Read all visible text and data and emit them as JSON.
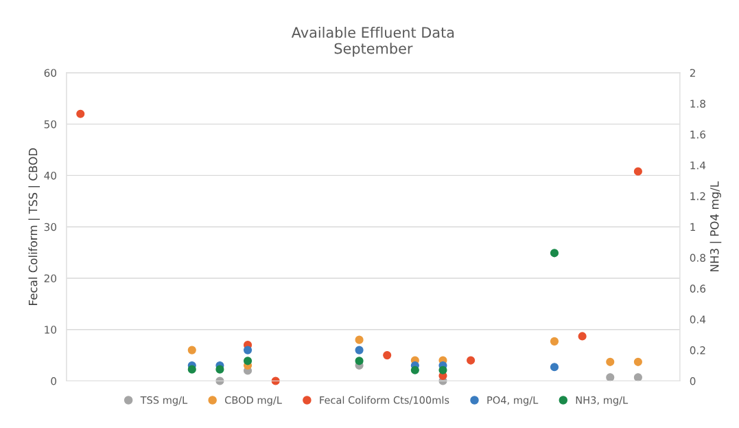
{
  "chart_data": {
    "type": "scatter",
    "title": "Available Effluent Data\nSeptember",
    "ylabel": "Fecal Coliform | TSS | CBOD",
    "y2label": "NH3 | PO4 mg/L",
    "categories": [
      null,
      null,
      null,
      null,
      null,
      null,
      null,
      null,
      null,
      null,
      null,
      null,
      null,
      null,
      null,
      null,
      null,
      null,
      null,
      null,
      null,
      null
    ],
    "series": [
      {
        "name": "TSS mg/L",
        "color": "#a5a5a5",
        "values": [
          null,
          null,
          null,
          null,
          null,
          0,
          2,
          null,
          null,
          null,
          3,
          null,
          null,
          0,
          null,
          null,
          null,
          null,
          null,
          0.7,
          0.7,
          null
        ]
      },
      {
        "name": "CBOD mg/L",
        "color": "#eb9a3c",
        "values": [
          null,
          null,
          null,
          null,
          6,
          null,
          3,
          null,
          null,
          null,
          8,
          null,
          4,
          4,
          null,
          null,
          null,
          7.7,
          null,
          3.7,
          3.7,
          null
        ]
      },
      {
        "name": "Fecal Coliform Cts/100mls",
        "color": "#e8502e",
        "values": [
          52,
          null,
          null,
          null,
          null,
          null,
          7,
          0,
          null,
          null,
          null,
          5,
          null,
          1,
          4,
          null,
          null,
          null,
          8.7,
          null,
          40.8,
          null
        ]
      },
      {
        "name": "PO4, mg/L",
        "color": "#3a7cc0",
        "axis": "y2",
        "values": [
          null,
          null,
          null,
          null,
          0.1,
          0.1,
          0.2,
          null,
          null,
          null,
          0.2,
          null,
          0.1,
          0.1,
          null,
          null,
          null,
          0.09,
          null,
          null,
          null,
          null
        ]
      },
      {
        "name": "NH3, mg/L",
        "color": "#1a8a4a",
        "axis": "y2",
        "values": [
          null,
          null,
          null,
          null,
          0.075,
          0.075,
          0.13,
          null,
          null,
          null,
          0.13,
          null,
          0.07,
          0.07,
          null,
          null,
          null,
          0.83,
          null,
          null,
          null,
          null
        ]
      }
    ],
    "ylim": [
      0,
      60
    ],
    "yticks": [
      0,
      10,
      20,
      30,
      40,
      50,
      60
    ],
    "y2lim": [
      0,
      2
    ],
    "y2ticks": [
      0,
      0.2,
      0.4,
      0.6,
      0.8,
      1,
      1.2,
      1.4,
      1.6,
      1.8,
      2
    ],
    "grid": "y",
    "legend": "bottom",
    "marker": "circle"
  }
}
